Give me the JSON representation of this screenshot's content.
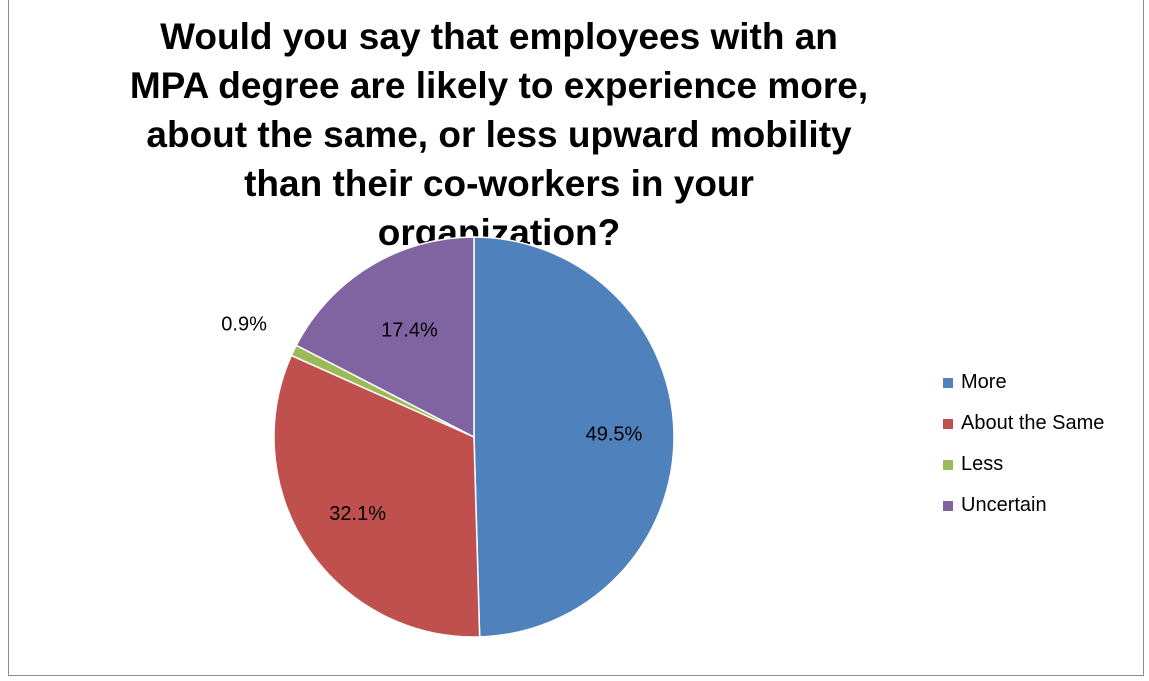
{
  "chart_data": {
    "type": "pie",
    "title": "Would you say that employees with an MPA degree are likely to experience more, about the same, or less upward mobility than their co-workers in your organization?",
    "categories": [
      "More",
      "About the Same",
      "Less",
      "Uncertain"
    ],
    "values": [
      49.5,
      32.1,
      0.9,
      17.4
    ],
    "labels": [
      "49.5%",
      "32.1%",
      "0.9%",
      "17.4%"
    ],
    "colors": [
      "#4f81bd",
      "#c0504d",
      "#9bbb59",
      "#8064a2"
    ],
    "legend_position": "right"
  }
}
